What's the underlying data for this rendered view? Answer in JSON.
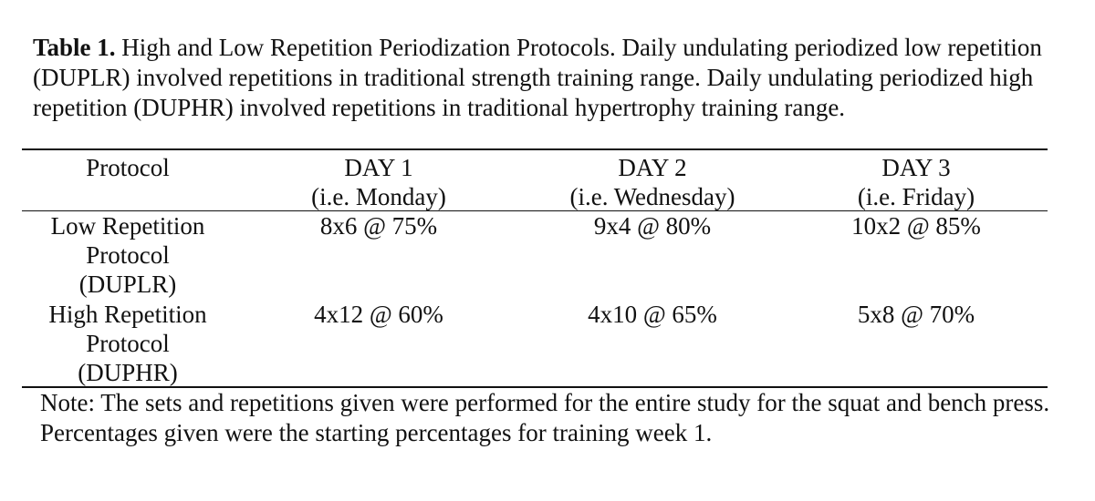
{
  "table": {
    "caption_label": "Table 1.",
    "caption_text": " High and Low Repetition Periodization Protocols. Daily undulating periodized low repetition (DUPLR) involved repetitions in traditional strength training range. Daily undulating periodized high repetition (DUPHR) involved repetitions in traditional hypertrophy training range.",
    "headers": [
      {
        "line1": "Protocol",
        "line2": ""
      },
      {
        "line1": "DAY 1",
        "line2": "(i.e. Monday)"
      },
      {
        "line1": "DAY 2",
        "line2": "(i.e. Wednesday)"
      },
      {
        "line1": "DAY 3",
        "line2": "(i.e. Friday)"
      }
    ],
    "rows": [
      {
        "protocol": [
          "Low Repetition",
          "Protocol",
          "(DUPLR)"
        ],
        "day1": "8x6 @ 75%",
        "day2": "9x4 @ 80%",
        "day3": "10x2 @ 85%"
      },
      {
        "protocol": [
          "High Repetition",
          "Protocol",
          "(DUPHR)"
        ],
        "day1": "4x12 @ 60%",
        "day2": "4x10 @ 65%",
        "day3": "5x8 @ 70%"
      }
    ],
    "note": "Note: The sets and repetitions given were performed for the entire study for the squat and bench press. Percentages given were the starting percentages for training week 1."
  }
}
